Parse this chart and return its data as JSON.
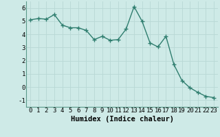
{
  "x": [
    0,
    1,
    2,
    3,
    4,
    5,
    6,
    7,
    8,
    9,
    10,
    11,
    12,
    13,
    14,
    15,
    16,
    17,
    18,
    19,
    20,
    21,
    22,
    23
  ],
  "y": [
    5.1,
    5.2,
    5.15,
    5.5,
    4.7,
    4.5,
    4.5,
    4.3,
    3.6,
    3.85,
    3.55,
    3.6,
    4.4,
    6.1,
    5.0,
    3.35,
    3.05,
    3.85,
    1.7,
    0.5,
    -0.05,
    -0.4,
    -0.7,
    -0.8
  ],
  "line_color": "#2e7d6e",
  "marker": "+",
  "markersize": 4.0,
  "linewidth": 1.0,
  "xlabel": "Humidex (Indice chaleur)",
  "xlabel_fontsize": 7.5,
  "xlim": [
    -0.5,
    23.5
  ],
  "ylim": [
    -1.5,
    6.5
  ],
  "yticks": [
    -1,
    0,
    1,
    2,
    3,
    4,
    5,
    6
  ],
  "xticks": [
    0,
    1,
    2,
    3,
    4,
    5,
    6,
    7,
    8,
    9,
    10,
    11,
    12,
    13,
    14,
    15,
    16,
    17,
    18,
    19,
    20,
    21,
    22,
    23
  ],
  "background_color": "#ceeae7",
  "grid_color": "#b8d8d5",
  "tick_fontsize": 6.5,
  "figure_bg": "#ceeae7",
  "spine_color": "#5a9a8a"
}
